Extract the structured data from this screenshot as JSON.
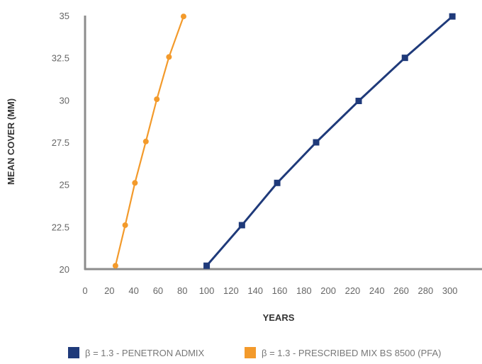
{
  "chart_data": {
    "type": "line",
    "title": "",
    "xlabel": "YEARS",
    "ylabel": "MEAN COVER (MM)",
    "xlim": [
      0,
      300
    ],
    "ylim": [
      20,
      35
    ],
    "x_ticks": [
      "0",
      "20",
      "40",
      "60",
      "80",
      "100",
      "120",
      "140",
      "160",
      "180",
      "200",
      "220",
      "240",
      "260",
      "280",
      "300"
    ],
    "y_ticks": [
      "20",
      "22.5",
      "25",
      "27.5",
      "30",
      "32.5",
      "35"
    ],
    "grid": false,
    "legend_position": "bottom",
    "series": [
      {
        "name": "β = 1.3 - PENETRON ADMIX",
        "color": "#1f3a7a",
        "marker": "square",
        "x": [
          100,
          129,
          158,
          190,
          225,
          263,
          302
        ],
        "y": [
          20.2,
          22.6,
          25.1,
          27.5,
          29.95,
          32.5,
          34.95
        ]
      },
      {
        "name": "β = 1.3 - PRESCRIBED MIX BS 8500 (PFA)",
        "color": "#f39a2b",
        "marker": "circle",
        "x": [
          25,
          33,
          41,
          50,
          59,
          69,
          81
        ],
        "y": [
          20.2,
          22.6,
          25.1,
          27.55,
          30.05,
          32.55,
          34.95
        ]
      }
    ]
  }
}
